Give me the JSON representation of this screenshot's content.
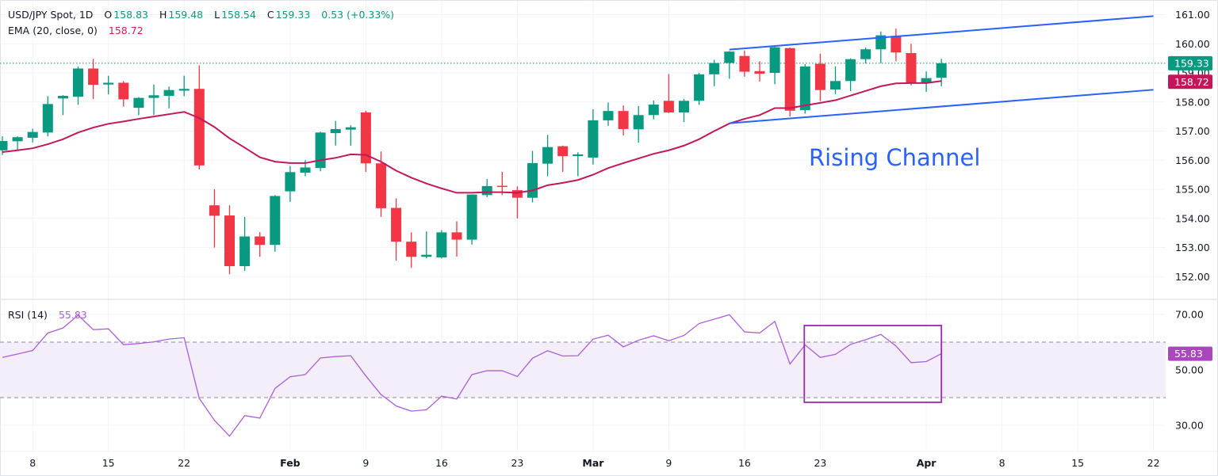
{
  "header": {
    "symbol": "USD/JPY Spot, 1D",
    "o_label": "O",
    "open": "158.83",
    "h_label": "H",
    "high": "159.48",
    "l_label": "L",
    "low": "158.54",
    "c_label": "C",
    "close": "159.33",
    "change": "0.53 (+0.33%)",
    "ema_label": "EMA (20, close, 0)",
    "ema_value": "158.72"
  },
  "rsi_header": {
    "label": "RSI (14)",
    "value": "55.83"
  },
  "annotation_text": "Rising Channel",
  "colors": {
    "up": "#089981",
    "down": "#f23645",
    "ema": "#c2185b",
    "rsi": "#ab5ed8",
    "rsi_band": "#f3eefa",
    "channel": "#2962ff",
    "rsi_box": "#9c27b0",
    "grid": "#f0f3fa",
    "text": "#131722"
  },
  "chart_data": [
    {
      "type": "candlestick",
      "ylim": [
        151.5,
        161.4
      ],
      "y_ticks": [
        "161.00",
        "160.00",
        "159.00",
        "158.00",
        "157.00",
        "156.00",
        "155.00",
        "154.00",
        "153.00",
        "152.00"
      ],
      "x_ticks": [
        {
          "date": "01-08",
          "label": "8",
          "bold": false
        },
        {
          "date": "01-15",
          "label": "15",
          "bold": false
        },
        {
          "date": "01-22",
          "label": "22",
          "bold": false
        },
        {
          "date": "02-02",
          "label": "Feb",
          "bold": true
        },
        {
          "date": "02-09",
          "label": "9",
          "bold": false
        },
        {
          "date": "02-16",
          "label": "16",
          "bold": false
        },
        {
          "date": "02-23",
          "label": "23",
          "bold": false
        },
        {
          "date": "03-02",
          "label": "Mar",
          "bold": true
        },
        {
          "date": "03-09",
          "label": "9",
          "bold": false
        },
        {
          "date": "03-16",
          "label": "16",
          "bold": false
        },
        {
          "date": "03-23",
          "label": "23",
          "bold": false
        },
        {
          "date": "04-01",
          "label": "Apr",
          "bold": true
        },
        {
          "date": "04-08",
          "label": "8",
          "bold": false
        },
        {
          "date": "04-15",
          "label": "15",
          "bold": false
        },
        {
          "date": "04-22",
          "label": "22",
          "bold": false
        }
      ],
      "dates": [
        "01-06",
        "01-07",
        "01-08",
        "01-09",
        "01-12",
        "01-13",
        "01-14",
        "01-15",
        "01-16",
        "01-19",
        "01-20",
        "01-21",
        "01-22",
        "01-23",
        "01-26",
        "01-27",
        "01-28",
        "01-29",
        "01-30",
        "02-02",
        "02-03",
        "02-04",
        "02-05",
        "02-06",
        "02-09",
        "02-10",
        "02-11",
        "02-12",
        "02-13",
        "02-16",
        "02-17",
        "02-18",
        "02-19",
        "02-20",
        "02-23",
        "02-24",
        "02-25",
        "02-26",
        "02-27",
        "03-02",
        "03-03",
        "03-04",
        "03-05",
        "03-06",
        "03-09",
        "03-10",
        "03-11",
        "03-12",
        "03-13",
        "03-16",
        "03-17",
        "03-18",
        "03-19",
        "03-20",
        "03-23",
        "03-24",
        "03-25",
        "03-26",
        "03-27",
        "03-30",
        "03-31",
        "04-01",
        "04-02"
      ],
      "ohlc": [
        [
          156.34,
          156.82,
          156.18,
          156.66
        ],
        [
          156.65,
          156.82,
          156.32,
          156.79
        ],
        [
          156.77,
          157.08,
          156.61,
          156.97
        ],
        [
          156.95,
          158.2,
          156.82,
          157.93
        ],
        [
          158.12,
          158.24,
          157.55,
          158.21
        ],
        [
          158.18,
          159.22,
          157.9,
          159.15
        ],
        [
          159.15,
          159.48,
          158.1,
          158.59
        ],
        [
          158.6,
          158.9,
          158.26,
          158.66
        ],
        [
          158.66,
          158.72,
          157.84,
          158.09
        ],
        [
          157.8,
          158.17,
          157.55,
          158.14
        ],
        [
          158.14,
          158.6,
          157.55,
          158.23
        ],
        [
          158.21,
          158.53,
          157.78,
          158.41
        ],
        [
          158.39,
          158.9,
          158.2,
          158.45
        ],
        [
          158.45,
          159.26,
          155.68,
          155.82
        ],
        [
          154.45,
          155.0,
          153.0,
          154.09
        ],
        [
          154.1,
          154.45,
          152.08,
          152.36
        ],
        [
          152.36,
          154.05,
          152.2,
          153.38
        ],
        [
          153.38,
          153.53,
          152.68,
          153.09
        ],
        [
          153.09,
          154.8,
          152.86,
          154.77
        ],
        [
          154.93,
          155.8,
          154.57,
          155.59
        ],
        [
          155.57,
          156.0,
          155.45,
          155.75
        ],
        [
          155.73,
          156.98,
          155.62,
          156.95
        ],
        [
          156.93,
          157.35,
          156.5,
          157.07
        ],
        [
          157.05,
          157.2,
          156.5,
          157.13
        ],
        [
          157.64,
          157.7,
          155.6,
          155.89
        ],
        [
          155.89,
          156.3,
          154.05,
          154.35
        ],
        [
          154.36,
          154.69,
          152.55,
          153.2
        ],
        [
          153.2,
          153.52,
          152.3,
          152.68
        ],
        [
          152.68,
          153.55,
          152.63,
          152.75
        ],
        [
          152.66,
          153.6,
          152.62,
          153.52
        ],
        [
          153.52,
          153.9,
          152.69,
          153.27
        ],
        [
          153.27,
          154.82,
          153.1,
          154.82
        ],
        [
          154.8,
          155.35,
          154.73,
          155.11
        ],
        [
          155.12,
          155.6,
          154.8,
          155.1
        ],
        [
          154.97,
          155.1,
          154.0,
          154.71
        ],
        [
          154.71,
          156.32,
          154.55,
          155.9
        ],
        [
          155.88,
          156.87,
          155.45,
          156.45
        ],
        [
          156.48,
          156.5,
          155.6,
          156.14
        ],
        [
          156.14,
          156.27,
          155.45,
          156.2
        ],
        [
          156.09,
          157.75,
          155.85,
          157.37
        ],
        [
          157.37,
          157.98,
          157.18,
          157.69
        ],
        [
          157.69,
          157.88,
          156.85,
          157.07
        ],
        [
          157.06,
          157.86,
          156.6,
          157.55
        ],
        [
          157.55,
          158.05,
          157.4,
          157.91
        ],
        [
          158.04,
          158.96,
          157.62,
          157.64
        ],
        [
          157.64,
          158.1,
          157.31,
          158.04
        ],
        [
          158.04,
          159.0,
          157.9,
          158.95
        ],
        [
          158.95,
          159.45,
          158.54,
          159.34
        ],
        [
          159.34,
          159.75,
          158.8,
          159.73
        ],
        [
          159.58,
          159.77,
          158.87,
          159.04
        ],
        [
          159.06,
          159.4,
          158.7,
          158.97
        ],
        [
          159.0,
          159.9,
          158.61,
          159.88
        ],
        [
          159.85,
          159.87,
          157.5,
          157.7
        ],
        [
          157.72,
          159.3,
          157.6,
          159.22
        ],
        [
          159.31,
          159.66,
          158.03,
          158.41
        ],
        [
          158.43,
          159.22,
          158.27,
          158.72
        ],
        [
          158.72,
          159.5,
          158.37,
          159.47
        ],
        [
          159.47,
          159.87,
          159.32,
          159.81
        ],
        [
          159.81,
          160.42,
          159.33,
          160.29
        ],
        [
          160.27,
          160.52,
          159.4,
          159.7
        ],
        [
          159.68,
          160.0,
          158.57,
          158.67
        ],
        [
          158.67,
          159.05,
          158.35,
          158.82
        ],
        [
          158.83,
          159.48,
          158.54,
          159.33
        ]
      ],
      "ema": [
        156.28,
        156.34,
        156.41,
        156.55,
        156.72,
        156.95,
        157.12,
        157.25,
        157.33,
        157.42,
        157.5,
        157.58,
        157.66,
        157.45,
        157.14,
        156.75,
        156.43,
        156.1,
        155.95,
        155.9,
        155.9,
        156.0,
        156.08,
        156.2,
        156.18,
        155.95,
        155.64,
        155.4,
        155.2,
        155.03,
        154.88,
        154.88,
        154.9,
        154.9,
        154.88,
        154.96,
        155.14,
        155.22,
        155.32,
        155.5,
        155.73,
        155.9,
        156.06,
        156.22,
        156.34,
        156.5,
        156.72,
        157.0,
        157.26,
        157.42,
        157.55,
        157.79,
        157.79,
        157.88,
        157.97,
        158.06,
        158.22,
        158.38,
        158.54,
        158.64,
        158.65,
        158.65,
        158.72
      ],
      "last_price_label": "159.33",
      "ema_price_label": "158.72",
      "channel": {
        "upper": [
          {
            "date": "03-13",
            "value": 159.8
          },
          {
            "date": "04-22",
            "value": 160.95
          }
        ],
        "lower": [
          {
            "date": "03-13",
            "value": 157.27
          },
          {
            "date": "04-22",
            "value": 158.42
          }
        ]
      }
    },
    {
      "type": "line",
      "title": "RSI (14)",
      "ylim": [
        24,
        74
      ],
      "y_ticks": [
        "70.00",
        "50.00",
        "30.00"
      ],
      "bands": [
        40,
        60
      ],
      "values": [
        54.5,
        55.7,
        57,
        63.3,
        65.1,
        69.7,
        64.5,
        64.8,
        59.1,
        59.5,
        60.1,
        61.1,
        61.6,
        39.7,
        31.8,
        26.1,
        33.5,
        32.6,
        43.3,
        47.5,
        48.3,
        54.3,
        54.8,
        55.1,
        47.8,
        41.1,
        37,
        35.1,
        35.6,
        40.5,
        39.5,
        48.3,
        49.7,
        49.7,
        47.6,
        54.2,
        56.9,
        55,
        55.1,
        61.1,
        62.5,
        58.3,
        60.7,
        62.3,
        60.5,
        62.4,
        66.7,
        68.3,
        69.9,
        63.7,
        63.3,
        67.5,
        52.1,
        59,
        54.5,
        55.6,
        59.2,
        60.9,
        62.8,
        58.6,
        52.6,
        53,
        55.83
      ],
      "last_value_label": "55.83",
      "highlight_box": {
        "from": "03-20",
        "to": "04-02",
        "top": 66,
        "bottom": 38.3
      }
    }
  ]
}
